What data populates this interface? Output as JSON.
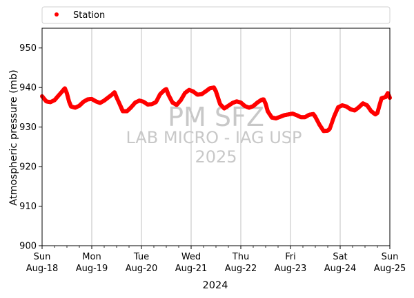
{
  "chart_data": {
    "type": "scatter",
    "title": "",
    "xlabel": "2024",
    "ylabel": "Atmospheric pressure (mb)",
    "ylim": [
      900,
      955
    ],
    "xlim": [
      "2024-08-18",
      "2024-08-25"
    ],
    "yticks": [
      900,
      910,
      920,
      930,
      940,
      950
    ],
    "xticks": [
      {
        "date": "2024-08-18",
        "day": "Sun",
        "label": "Aug-18"
      },
      {
        "date": "2024-08-19",
        "day": "Mon",
        "label": "Aug-19"
      },
      {
        "date": "2024-08-20",
        "day": "Tue",
        "label": "Aug-20"
      },
      {
        "date": "2024-08-21",
        "day": "Wed",
        "label": "Aug-21"
      },
      {
        "date": "2024-08-22",
        "day": "Thu",
        "label": "Aug-22"
      },
      {
        "date": "2024-08-23",
        "day": "Fri",
        "label": "Aug-23"
      },
      {
        "date": "2024-08-24",
        "day": "Sat",
        "label": "Aug-24"
      },
      {
        "date": "2024-08-25",
        "day": "Sun",
        "label": "Aug-25"
      }
    ],
    "grid": "vertical-major",
    "legend": {
      "position": "top",
      "entries": [
        "Station"
      ]
    },
    "watermark": [
      "PM SFZ",
      "LAB MICRO - IAG USP",
      "2025"
    ],
    "series": [
      {
        "name": "Station",
        "color": "#ff0000",
        "points": [
          [
            "2024-08-18 00:00",
            937.8
          ],
          [
            "2024-08-18 02:00",
            936.5
          ],
          [
            "2024-08-18 04:00",
            936.3
          ],
          [
            "2024-08-18 06:00",
            936.8
          ],
          [
            "2024-08-18 08:00",
            938.0
          ],
          [
            "2024-08-18 10:00",
            939.2
          ],
          [
            "2024-08-18 11:00",
            939.8
          ],
          [
            "2024-08-18 12:00",
            938.5
          ],
          [
            "2024-08-18 13:00",
            936.5
          ],
          [
            "2024-08-18 14:00",
            935.2
          ],
          [
            "2024-08-18 16:00",
            934.9
          ],
          [
            "2024-08-18 18:00",
            935.4
          ],
          [
            "2024-08-18 20:00",
            936.4
          ],
          [
            "2024-08-18 22:00",
            937.0
          ],
          [
            "2024-08-19 00:00",
            937.1
          ],
          [
            "2024-08-19 02:00",
            936.5
          ],
          [
            "2024-08-19 04:00",
            936.1
          ],
          [
            "2024-08-19 06:00",
            936.7
          ],
          [
            "2024-08-19 08:00",
            937.5
          ],
          [
            "2024-08-19 10:00",
            938.3
          ],
          [
            "2024-08-19 11:00",
            938.8
          ],
          [
            "2024-08-19 12:00",
            937.5
          ],
          [
            "2024-08-19 14:00",
            935.2
          ],
          [
            "2024-08-19 15:00",
            934.0
          ],
          [
            "2024-08-19 17:00",
            934.0
          ],
          [
            "2024-08-19 19:00",
            935.0
          ],
          [
            "2024-08-19 21:00",
            936.2
          ],
          [
            "2024-08-19 23:00",
            936.7
          ],
          [
            "2024-08-20 01:00",
            936.4
          ],
          [
            "2024-08-20 03:00",
            935.7
          ],
          [
            "2024-08-20 05:00",
            935.8
          ],
          [
            "2024-08-20 07:00",
            936.3
          ],
          [
            "2024-08-20 09:00",
            938.3
          ],
          [
            "2024-08-20 11:00",
            939.3
          ],
          [
            "2024-08-20 12:00",
            939.6
          ],
          [
            "2024-08-20 13:00",
            938.2
          ],
          [
            "2024-08-20 15:00",
            936.2
          ],
          [
            "2024-08-20 17:00",
            935.6
          ],
          [
            "2024-08-20 19:00",
            936.8
          ],
          [
            "2024-08-20 21:00",
            938.6
          ],
          [
            "2024-08-20 23:00",
            939.4
          ],
          [
            "2024-08-21 01:00",
            939.0
          ],
          [
            "2024-08-21 03:00",
            938.2
          ],
          [
            "2024-08-21 05:00",
            938.3
          ],
          [
            "2024-08-21 07:00",
            939.0
          ],
          [
            "2024-08-21 09:00",
            939.8
          ],
          [
            "2024-08-21 11:00",
            940.0
          ],
          [
            "2024-08-21 12:00",
            939.0
          ],
          [
            "2024-08-21 13:00",
            937.4
          ],
          [
            "2024-08-21 14:00",
            935.8
          ],
          [
            "2024-08-21 16:00",
            934.7
          ],
          [
            "2024-08-21 18:00",
            935.4
          ],
          [
            "2024-08-21 20:00",
            936.1
          ],
          [
            "2024-08-21 22:00",
            936.5
          ],
          [
            "2024-08-22 00:00",
            936.2
          ],
          [
            "2024-08-22 02:00",
            935.3
          ],
          [
            "2024-08-22 04:00",
            934.9
          ],
          [
            "2024-08-22 06:00",
            935.3
          ],
          [
            "2024-08-22 08:00",
            936.2
          ],
          [
            "2024-08-22 10:00",
            936.9
          ],
          [
            "2024-08-22 11:00",
            937.0
          ],
          [
            "2024-08-22 12:00",
            935.9
          ],
          [
            "2024-08-22 13:00",
            934.0
          ],
          [
            "2024-08-22 15:00",
            932.4
          ],
          [
            "2024-08-22 17:00",
            932.2
          ],
          [
            "2024-08-22 19:00",
            932.6
          ],
          [
            "2024-08-22 21:00",
            933.0
          ],
          [
            "2024-08-22 23:00",
            933.2
          ],
          [
            "2024-08-23 01:00",
            933.4
          ],
          [
            "2024-08-23 03:00",
            933.0
          ],
          [
            "2024-08-23 05:00",
            932.5
          ],
          [
            "2024-08-23 07:00",
            932.5
          ],
          [
            "2024-08-23 09:00",
            933.1
          ],
          [
            "2024-08-23 11:00",
            933.3
          ],
          [
            "2024-08-23 12:00",
            932.6
          ],
          [
            "2024-08-23 14:00",
            930.6
          ],
          [
            "2024-08-23 16:00",
            929.0
          ],
          [
            "2024-08-23 18:00",
            929.1
          ],
          [
            "2024-08-23 19:00",
            929.6
          ],
          [
            "2024-08-23 21:00",
            932.6
          ],
          [
            "2024-08-23 23:00",
            935.0
          ],
          [
            "2024-08-24 01:00",
            935.5
          ],
          [
            "2024-08-24 03:00",
            935.2
          ],
          [
            "2024-08-24 05:00",
            934.5
          ],
          [
            "2024-08-24 07:00",
            934.2
          ],
          [
            "2024-08-24 09:00",
            935.0
          ],
          [
            "2024-08-24 11:00",
            936.0
          ],
          [
            "2024-08-24 13:00",
            935.5
          ],
          [
            "2024-08-24 15:00",
            934.0
          ],
          [
            "2024-08-24 17:00",
            933.2
          ],
          [
            "2024-08-24 18:00",
            933.6
          ],
          [
            "2024-08-24 19:00",
            935.5
          ],
          [
            "2024-08-24 20:00",
            937.3
          ],
          [
            "2024-08-24 22:00",
            937.6
          ],
          [
            "2024-08-24 23:00",
            938.6
          ],
          [
            "2024-08-25 00:00",
            937.4
          ]
        ]
      }
    ]
  }
}
